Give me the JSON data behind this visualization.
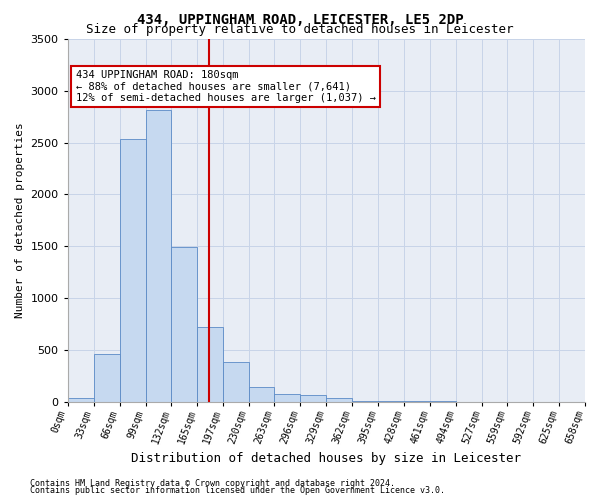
{
  "title": "434, UPPINGHAM ROAD, LEICESTER, LE5 2DP",
  "subtitle": "Size of property relative to detached houses in Leicester",
  "xlabel": "Distribution of detached houses by size in Leicester",
  "ylabel": "Number of detached properties",
  "footnote1": "Contains HM Land Registry data © Crown copyright and database right 2024.",
  "footnote2": "Contains public sector information licensed under the Open Government Licence v3.0.",
  "annotation_line1": "434 UPPINGHAM ROAD: 180sqm",
  "annotation_line2": "← 88% of detached houses are smaller (7,641)",
  "annotation_line3": "12% of semi-detached houses are larger (1,037) →",
  "property_size": 180,
  "bin_edges": [
    0,
    33,
    66,
    99,
    132,
    165,
    197,
    230,
    263,
    296,
    329,
    362,
    395,
    428,
    461,
    494,
    527,
    559,
    592,
    625,
    658
  ],
  "bar_heights": [
    30,
    460,
    2530,
    2810,
    1490,
    720,
    380,
    140,
    75,
    60,
    30,
    10,
    5,
    2,
    1,
    0,
    0,
    0,
    0,
    0
  ],
  "bar_color": "#c6d9f0",
  "bar_edge_color": "#5a8ac6",
  "vline_color": "#cc0000",
  "vline_x": 180,
  "annotation_box_edge": "#cc0000",
  "annotation_box_fill": "white",
  "ylim": [
    0,
    3500
  ],
  "yticks": [
    0,
    500,
    1000,
    1500,
    2000,
    2500,
    3000,
    3500
  ],
  "grid_color": "#c8d4e8",
  "bg_color": "#e8edf5",
  "title_fontsize": 10,
  "subtitle_fontsize": 9,
  "ylabel_fontsize": 8,
  "xlabel_fontsize": 9,
  "tick_label_fontsize": 7,
  "annotation_fontsize": 7.5,
  "footnote_fontsize": 6
}
